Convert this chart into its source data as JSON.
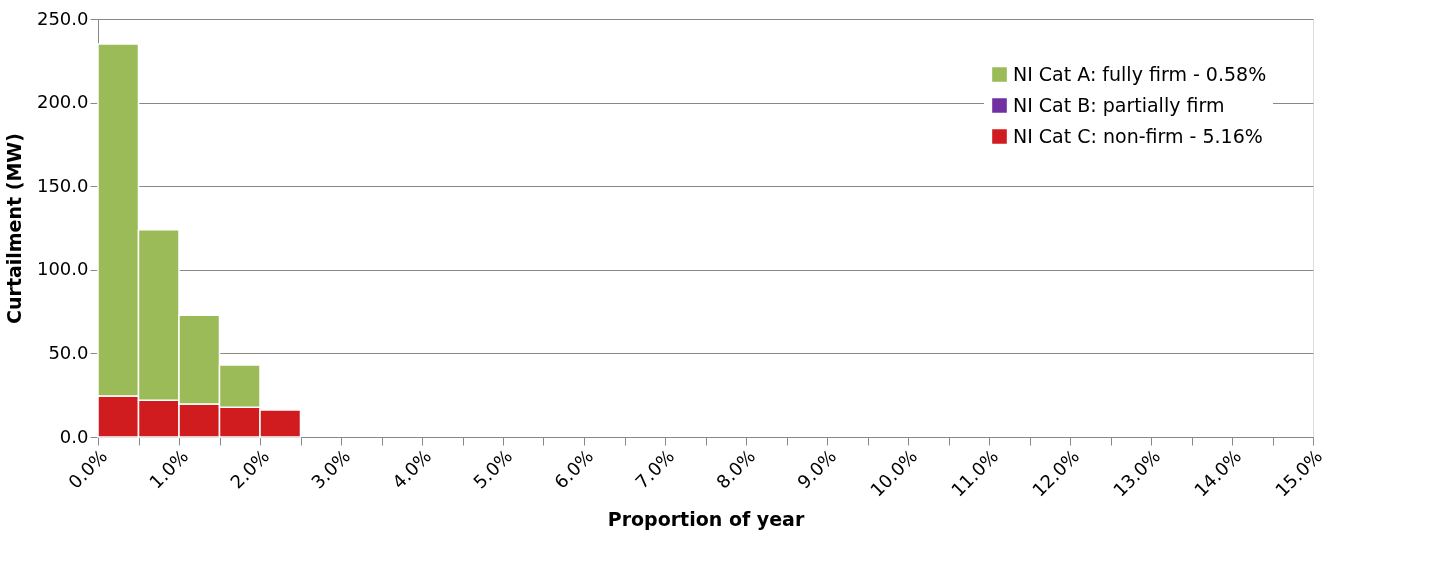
{
  "chart_data": {
    "type": "bar",
    "stacked": true,
    "xlabel": "Proportion of year",
    "ylabel": "Curtailment (MW)",
    "x": [
      0.25,
      0.75,
      1.25,
      1.75,
      2.25
    ],
    "series": [
      {
        "name": "NI Cat C: non-firm - 5.16%",
        "color": "#d01c1f",
        "values": [
          24.5,
          22,
          19.8,
          17.8,
          16.2
        ]
      },
      {
        "name": "NI Cat B: partially firm",
        "color": "#7030a0",
        "values": [
          null,
          null,
          null,
          null,
          null
        ]
      },
      {
        "name": "NI Cat A: fully firm - 0.58%",
        "color": "#9bbb59",
        "values": [
          210.5,
          102,
          53,
          25.2,
          null
        ]
      }
    ],
    "xlim": [
      0,
      15
    ],
    "xticks": [
      {
        "value": 0,
        "label": "0.0%"
      },
      {
        "value": 0.5,
        "label": null
      },
      {
        "value": 1,
        "label": "1.0%"
      },
      {
        "value": 1.5,
        "label": null
      },
      {
        "value": 2,
        "label": "2.0%"
      },
      {
        "value": 2.5,
        "label": null
      },
      {
        "value": 3,
        "label": "3.0%"
      },
      {
        "value": 3.5,
        "label": null
      },
      {
        "value": 4,
        "label": "4.0%"
      },
      {
        "value": 4.5,
        "label": null
      },
      {
        "value": 5,
        "label": "5.0%"
      },
      {
        "value": 5.5,
        "label": null
      },
      {
        "value": 6,
        "label": "6.0%"
      },
      {
        "value": 6.5,
        "label": null
      },
      {
        "value": 7,
        "label": "7.0%"
      },
      {
        "value": 7.5,
        "label": null
      },
      {
        "value": 8,
        "label": "8.0%"
      },
      {
        "value": 8.5,
        "label": null
      },
      {
        "value": 9,
        "label": "9.0%"
      },
      {
        "value": 9.5,
        "label": null
      },
      {
        "value": 10,
        "label": "10.0%"
      },
      {
        "value": 10.5,
        "label": null
      },
      {
        "value": 11,
        "label": "11.0%"
      },
      {
        "value": 11.5,
        "label": null
      },
      {
        "value": 12,
        "label": "12.0%"
      },
      {
        "value": 12.5,
        "label": null
      },
      {
        "value": 13,
        "label": "13.0%"
      },
      {
        "value": 13.5,
        "label": null
      },
      {
        "value": 14,
        "label": "14.0%"
      },
      {
        "value": 14.5,
        "label": null
      },
      {
        "value": 15,
        "label": "15.0%"
      }
    ],
    "ylim": [
      0,
      250
    ],
    "yticks": [
      {
        "value": 0,
        "label": "0.0"
      },
      {
        "value": 50,
        "label": "50.0"
      },
      {
        "value": 100,
        "label": "100.0"
      },
      {
        "value": 150,
        "label": "150.0"
      },
      {
        "value": 200,
        "label": "200.0"
      },
      {
        "value": 250,
        "label": "250.0"
      }
    ],
    "grid": "y",
    "legend": "top right"
  }
}
